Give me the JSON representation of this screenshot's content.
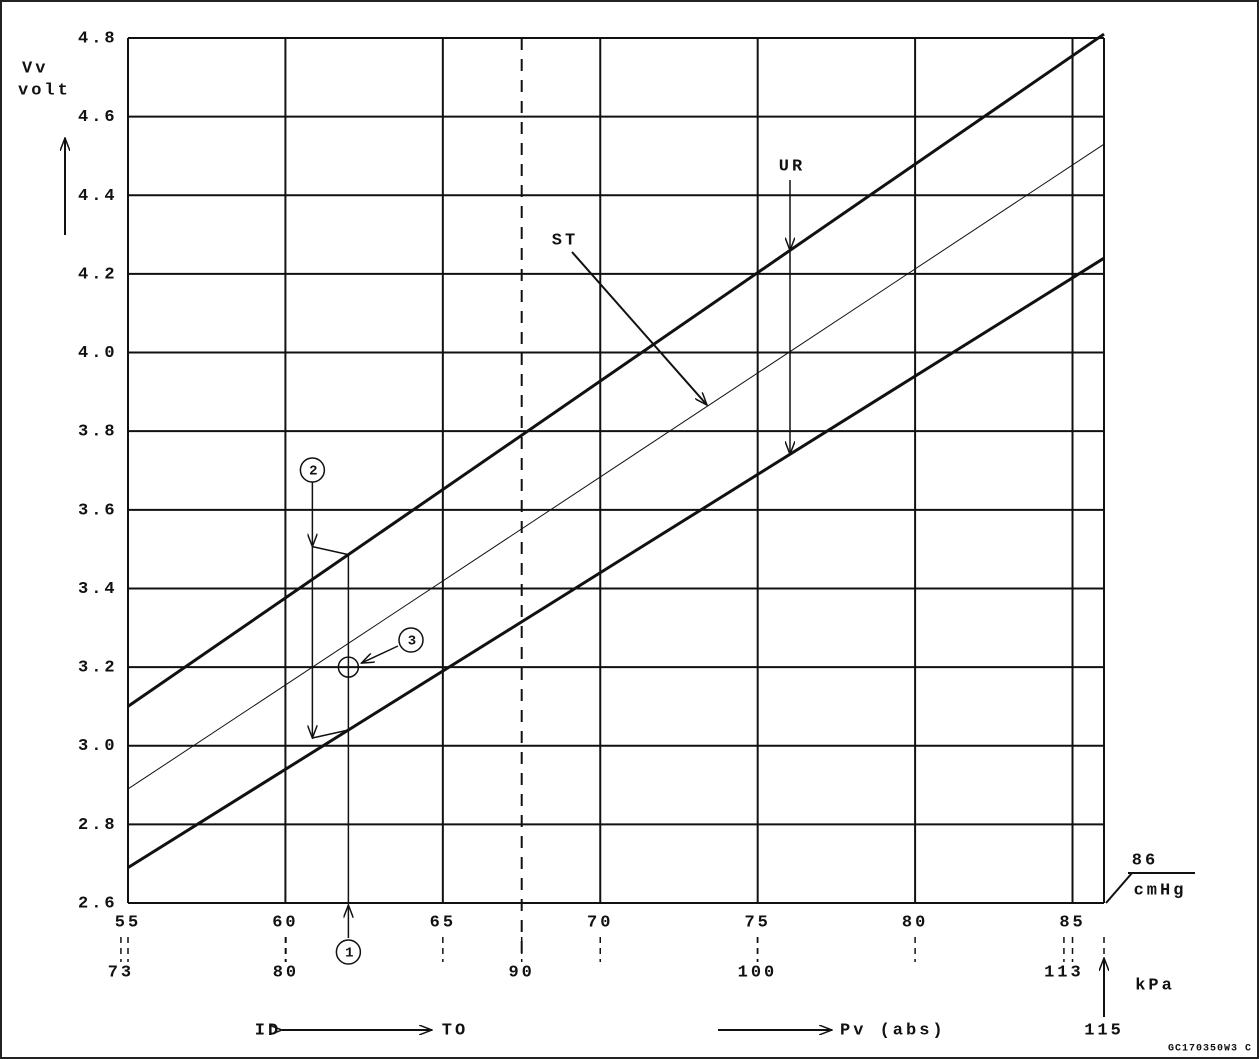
{
  "chart_data": {
    "type": "line",
    "y_label": [
      "Vv",
      "volt"
    ],
    "x": [
      55,
      86
    ],
    "series": [
      {
        "name": "upper limit",
        "color": "#111111",
        "width": 3,
        "values": [
          3.1,
          4.81
        ]
      },
      {
        "name": "ST",
        "color": "#111111",
        "width": 1,
        "values": [
          2.89,
          4.53
        ]
      },
      {
        "name": "lower limit",
        "color": "#111111",
        "width": 3,
        "values": [
          2.69,
          4.24
        ]
      }
    ],
    "xlim": [
      55,
      86
    ],
    "xticks": [
      55,
      60,
      65,
      70,
      75,
      80,
      85
    ],
    "x_end_label": "86",
    "x_unit": "cmHg",
    "ylim": [
      2.6,
      4.8
    ],
    "yticks": [
      2.6,
      2.8,
      {
        "value": 3,
        "label": "3.0"
      },
      3.2,
      3.4,
      3.6,
      3.8,
      {
        "value": 4,
        "label": "4.0"
      },
      4.2,
      4.4,
      4.6,
      4.8
    ],
    "grid": true,
    "kpa_axis": {
      "label": "kPa",
      "xlim": [
        73.3,
        114.7
      ],
      "xticks": [
        73,
        80,
        90,
        100,
        113
      ],
      "end_label": "115",
      "dashed_line": 90
    },
    "example": {
      "x": 62,
      "value": 3.2
    },
    "annotations": {
      "st": "ST",
      "ur": "UR",
      "c1": "1",
      "c2": "2",
      "c3": "3",
      "id": "ID",
      "to": "TO",
      "pv": "Pv (abs)"
    },
    "code": "GC170350W3 C"
  }
}
